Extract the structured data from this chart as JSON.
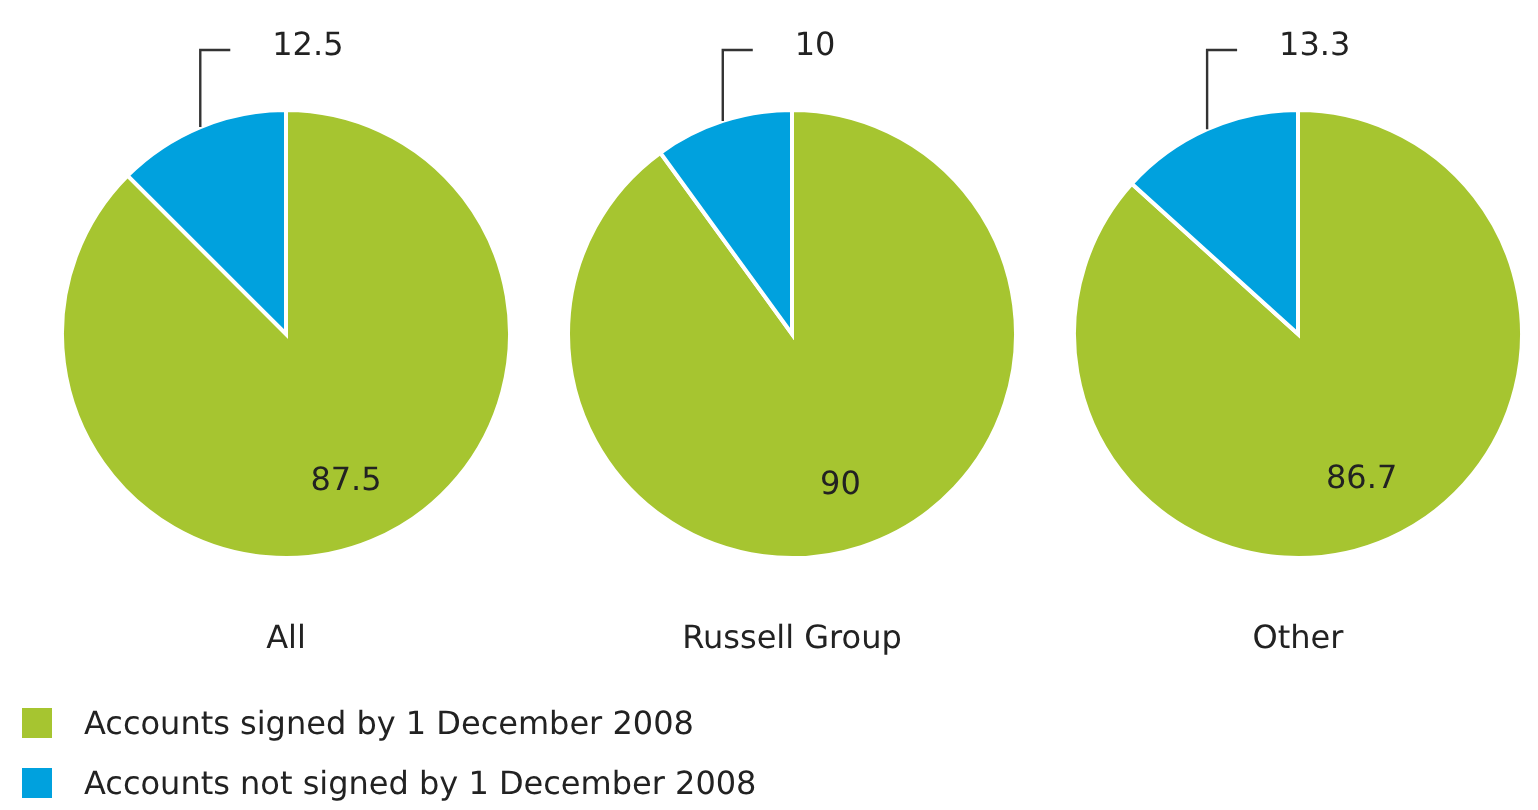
{
  "chart_data": [
    {
      "type": "pie",
      "title": "All",
      "categories": [
        "Accounts signed by 1 December 2008",
        "Accounts not signed by 1 December 2008"
      ],
      "values": [
        87.5,
        12.5
      ],
      "colors": [
        "#a6c530",
        "#00a1de"
      ],
      "data_labels": true,
      "legend": "bottom"
    },
    {
      "type": "pie",
      "title": "Russell Group",
      "categories": [
        null,
        null
      ],
      "values": [
        90,
        10
      ],
      "colors": [
        "#a6c530",
        "#00a1de"
      ],
      "data_labels": true
    },
    {
      "type": "pie",
      "title": "Other",
      "categories": [
        null,
        null
      ],
      "values": [
        86.7,
        13.3
      ],
      "colors": [
        "#a6c530",
        "#00a1de"
      ],
      "data_labels": true
    }
  ]
}
